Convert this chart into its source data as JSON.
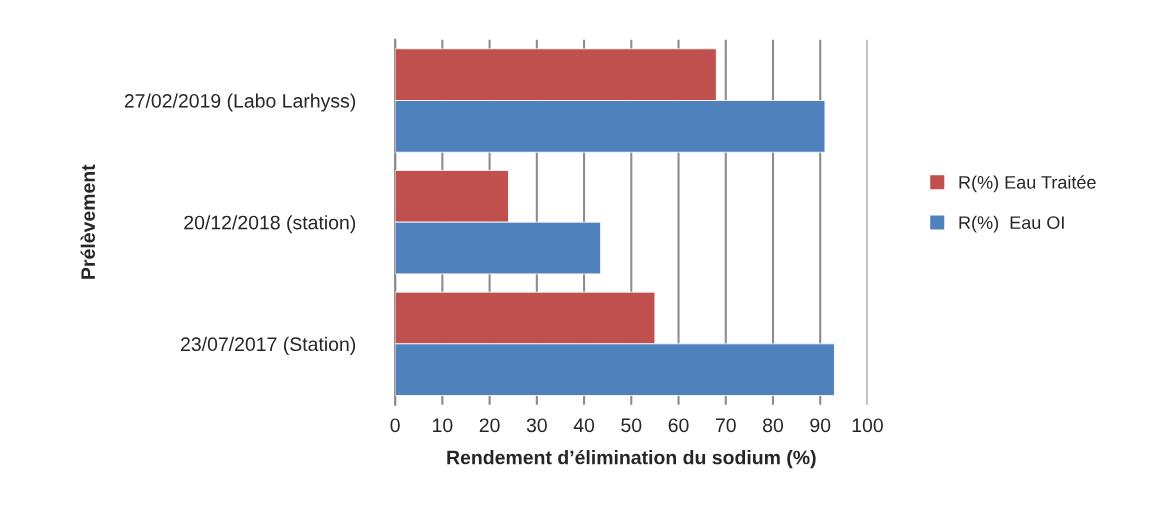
{
  "chart_data": {
    "type": "bar",
    "orientation": "horizontal",
    "xlabel": "Rendement d’élimination du sodium (%)",
    "ylabel": "Prélèvement",
    "categories": [
      "27/02/2019 (Labo Larhyss)",
      "20/12/2018 (station)",
      "23/07/2017 (Station)"
    ],
    "series": [
      {
        "name": "R(%) Eau Traitée",
        "color": "#c0504d",
        "values": [
          68,
          24,
          55
        ]
      },
      {
        "name": "R(%)  Eau OI",
        "color": "#4f81bd",
        "values": [
          91,
          43.5,
          93
        ]
      }
    ],
    "xlim": [
      0,
      100
    ],
    "xticks": [
      0,
      10,
      20,
      30,
      40,
      50,
      60,
      70,
      80,
      90,
      100
    ],
    "grid": "x",
    "legend": "right"
  }
}
